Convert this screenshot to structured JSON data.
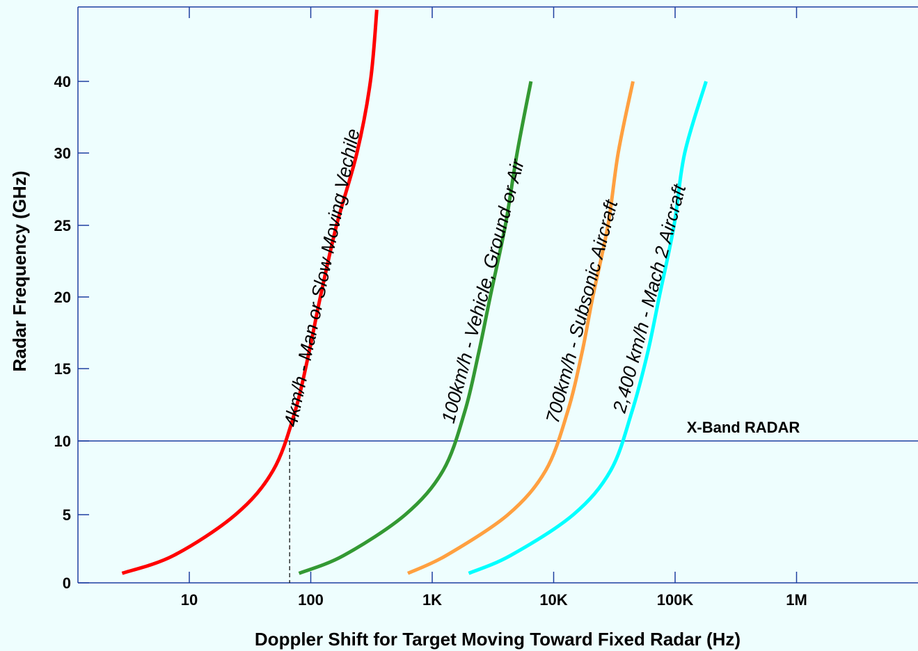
{
  "chart_data": {
    "type": "line",
    "xlabel": "Doppler Shift for Target Moving Toward Fixed Radar (Hz)",
    "ylabel": "Radar Frequency (GHz)",
    "x_scale": "log",
    "x_ticks": [
      {
        "value": 10,
        "label": "10"
      },
      {
        "value": 100,
        "label": "100"
      },
      {
        "value": 1000,
        "label": "1K"
      },
      {
        "value": 10000,
        "label": "10K"
      },
      {
        "value": 100000,
        "label": "100K"
      },
      {
        "value": 1000000,
        "label": "1M"
      }
    ],
    "y_ticks": [
      {
        "value": 0,
        "label": "0"
      },
      {
        "value": 5,
        "label": "5"
      },
      {
        "value": 10,
        "label": "10"
      },
      {
        "value": 15,
        "label": "15"
      },
      {
        "value": 20,
        "label": "20"
      },
      {
        "value": 25,
        "label": "25"
      },
      {
        "value": 30,
        "label": "30"
      },
      {
        "value": 40,
        "label": "40"
      }
    ],
    "grid": false,
    "reference_line": {
      "y": 10,
      "label": "X-Band RADAR"
    },
    "series": [
      {
        "name": "4km/h - Man or Slow Moving Vechile",
        "color": "#ff0000",
        "speed_kmh": 4,
        "x": [
          2.8,
          7.4,
          24,
          49,
          74,
          96,
          120,
          163,
          240,
          310,
          350
        ],
        "y": [
          0.7,
          2.0,
          5.0,
          8.0,
          12.0,
          16.0,
          20.0,
          25.0,
          30.0,
          40.0,
          45.0
        ]
      },
      {
        "name": "100km/h - Vehicle, Ground or Air",
        "color": "#339933",
        "speed_kmh": 100,
        "x": [
          80,
          186,
          600,
          1230,
          1850,
          2400,
          3000,
          4000,
          5000,
          6500
        ],
        "y": [
          0.7,
          2.0,
          5.0,
          8.0,
          12.0,
          16.0,
          20.0,
          25.0,
          30.0,
          40.0
        ]
      },
      {
        "name": "700km/h - Subsonic Aircraft",
        "color": "#ffa040",
        "speed_kmh": 700,
        "x": [
          630,
          1300,
          4200,
          8600,
          13000,
          17000,
          21000,
          28000,
          34000,
          45000
        ],
        "y": [
          0.7,
          2.0,
          5.0,
          8.0,
          12.0,
          16.0,
          20.0,
          25.0,
          30.0,
          40.0
        ]
      },
      {
        "name": "2,400 km/h - Mach 2 Aircraft",
        "color": "#00ffff",
        "speed_kmh": 2400,
        "x": [
          2000,
          4400,
          14500,
          29500,
          44000,
          59000,
          74000,
          98000,
          120000,
          180000
        ],
        "y": [
          0.7,
          2.0,
          5.0,
          8.0,
          12.0,
          16.0,
          20.0,
          25.0,
          30.0,
          40.0
        ]
      }
    ],
    "marker": {
      "x": 67,
      "y_from": 0,
      "y_to": 10,
      "style": "dashed"
    }
  }
}
